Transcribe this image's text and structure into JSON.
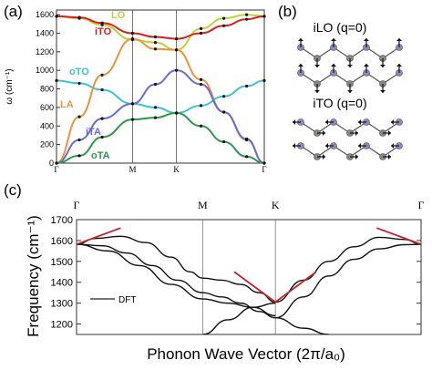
{
  "chart_data": [
    {
      "panel": "a",
      "panel_label": "(a)",
      "type": "line",
      "ylabel": "ω (cm⁻¹)",
      "ylim": [
        0,
        1650
      ],
      "yticks": [
        0,
        200,
        400,
        600,
        800,
        1000,
        1200,
        1400,
        1600
      ],
      "x_ticks": [
        "Γ",
        "M",
        "K",
        "Γ"
      ],
      "x_tick_positions": [
        0,
        1,
        1.577,
        2.732
      ],
      "xlim": [
        0,
        2.732
      ],
      "series": [
        {
          "name": "LO",
          "color": "#b9d435",
          "x": [
            0,
            0.3,
            0.6,
            1.0,
            1.3,
            1.577,
            1.9,
            2.2,
            2.5,
            2.732
          ],
          "values": [
            1582,
            1560,
            1490,
            1330,
            1300,
            1220,
            1450,
            1560,
            1600,
            1582
          ]
        },
        {
          "name": "iTO",
          "color": "#d42020",
          "x": [
            0,
            0.3,
            0.6,
            1.0,
            1.3,
            1.577,
            1.9,
            2.2,
            2.5,
            2.732
          ],
          "values": [
            1582,
            1570,
            1510,
            1400,
            1360,
            1340,
            1400,
            1480,
            1550,
            1582
          ]
        },
        {
          "name": "oTO",
          "color": "#3cc2d4",
          "x": [
            0,
            0.3,
            0.6,
            1.0,
            1.3,
            1.577,
            1.9,
            2.2,
            2.5,
            2.732
          ],
          "values": [
            890,
            860,
            790,
            640,
            600,
            540,
            620,
            720,
            830,
            890
          ]
        },
        {
          "name": "LA",
          "color": "#e8943a",
          "x": [
            0,
            0.3,
            0.6,
            1.0,
            1.3,
            1.577,
            1.9,
            2.2,
            2.5,
            2.732
          ],
          "values": [
            0,
            500,
            950,
            1340,
            1230,
            1220,
            900,
            550,
            250,
            0
          ]
        },
        {
          "name": "iTA",
          "color": "#6a6ad4",
          "x": [
            0,
            0.3,
            0.6,
            1.0,
            1.3,
            1.577,
            1.9,
            2.2,
            2.5,
            2.732
          ],
          "values": [
            0,
            250,
            480,
            640,
            850,
            1000,
            850,
            550,
            260,
            0
          ]
        },
        {
          "name": "oTA",
          "color": "#2a9a4a",
          "x": [
            0,
            0.3,
            0.6,
            1.0,
            1.3,
            1.577,
            1.9,
            2.2,
            2.5,
            2.732
          ],
          "values": [
            0,
            80,
            280,
            470,
            490,
            540,
            400,
            230,
            70,
            0
          ]
        }
      ]
    },
    {
      "panel": "b",
      "panel_label": "(b)",
      "type": "diagram",
      "labels": [
        "iLO (q=0)",
        "iTO (q=0)"
      ]
    },
    {
      "panel": "c",
      "panel_label": "(c)",
      "type": "line",
      "ylabel": "Frequency (cm⁻¹)",
      "xlabel": "Phonon Wave Vector (2π/a₀)",
      "ylim": [
        1150,
        1700
      ],
      "yticks": [
        1200,
        1300,
        1400,
        1500,
        1600,
        1700
      ],
      "x_ticks": [
        "Γ",
        "M",
        "K",
        "Γ"
      ],
      "x_tick_positions": [
        0,
        1,
        1.577,
        2.732
      ],
      "xlim": [
        0,
        2.732
      ],
      "legend": "DFT",
      "legend_position": "middle-left",
      "series": [
        {
          "x": [
            0,
            0.15,
            0.35,
            0.55,
            0.75,
            0.9,
            1.0,
            1.15,
            1.3,
            1.45,
            1.577
          ],
          "values": [
            1582,
            1610,
            1620,
            1590,
            1520,
            1450,
            1420,
            1410,
            1390,
            1350,
            1305
          ]
        },
        {
          "x": [
            0,
            0.2,
            0.4,
            0.6,
            0.8,
            1.0,
            1.15,
            1.3,
            1.45,
            1.577
          ],
          "values": [
            1582,
            1575,
            1540,
            1480,
            1410,
            1350,
            1330,
            1300,
            1260,
            1230
          ]
        },
        {
          "x": [
            0,
            0.25,
            0.5,
            0.75,
            1.0,
            1.2,
            1.4,
            1.577
          ],
          "values": [
            1582,
            1550,
            1480,
            1390,
            1320,
            1300,
            1280,
            1240
          ]
        },
        {
          "x": [
            1.577,
            1.8,
            2.0,
            2.2,
            2.4,
            2.6,
            2.732
          ],
          "values": [
            1305,
            1410,
            1500,
            1570,
            1615,
            1605,
            1582
          ]
        },
        {
          "x": [
            1.577,
            1.8,
            2.0,
            2.2,
            2.4,
            2.6,
            2.732
          ],
          "values": [
            1230,
            1330,
            1430,
            1510,
            1560,
            1580,
            1582
          ]
        },
        {
          "x": [
            1.0,
            1.2,
            1.4,
            1.577
          ],
          "values": [
            1150,
            1220,
            1280,
            1300
          ]
        },
        {
          "x": [
            1.577,
            1.8,
            2.0
          ],
          "values": [
            1230,
            1180,
            1150
          ]
        }
      ],
      "kohn_anomaly_lines": [
        {
          "x": [
            0,
            0.35
          ],
          "values": [
            1582,
            1660
          ]
        },
        {
          "x": [
            2.732,
            2.38
          ],
          "values": [
            1582,
            1660
          ]
        },
        {
          "x": [
            1.577,
            1.25
          ],
          "values": [
            1305,
            1450
          ]
        },
        {
          "x": [
            1.577,
            1.9
          ],
          "values": [
            1305,
            1450
          ]
        }
      ]
    }
  ]
}
